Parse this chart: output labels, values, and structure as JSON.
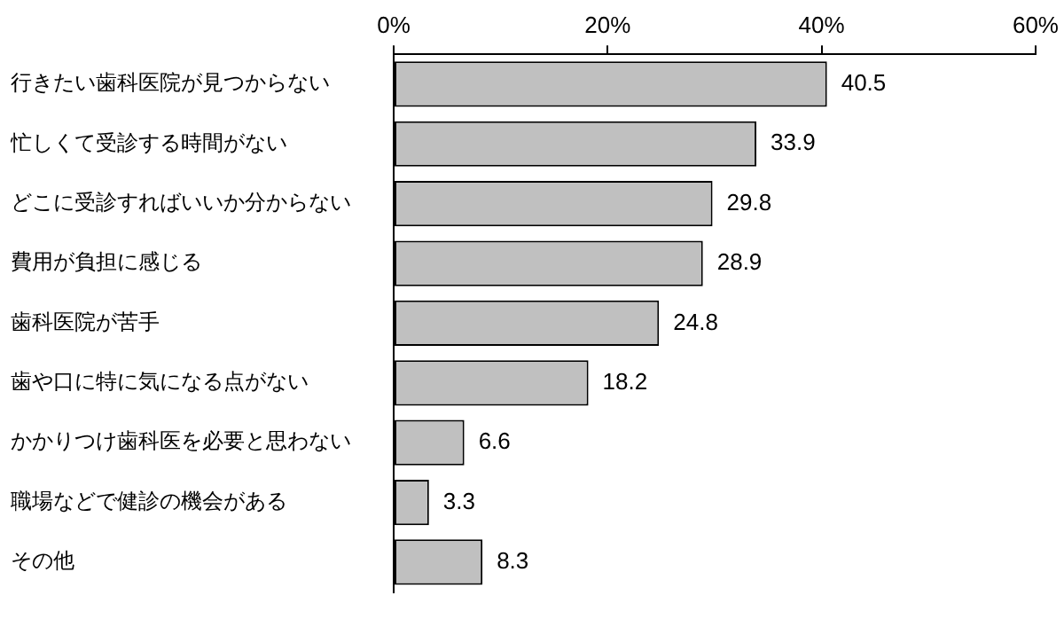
{
  "chart_data": {
    "type": "bar",
    "orientation": "horizontal",
    "categories": [
      "行きたい歯科医院が見つからない",
      "忙しくて受診する時間がない",
      "どこに受診すればいいか分からない",
      "費用が負担に感じる",
      "歯科医院が苦手",
      "歯や口に特に気になる点がない",
      "かかりつけ歯科医を必要と思わない",
      "職場などで健診の機会がある",
      "その他"
    ],
    "values": [
      40.5,
      33.9,
      29.8,
      28.9,
      24.8,
      18.2,
      6.6,
      3.3,
      8.3
    ],
    "color": "#c0c0c0",
    "xlim": [
      0,
      60
    ],
    "xticks": [
      {
        "value": 0,
        "label": "0%"
      },
      {
        "value": 20,
        "label": "20%"
      },
      {
        "value": 40,
        "label": "40%"
      },
      {
        "value": 60,
        "label": "60%"
      }
    ],
    "data_labels": true,
    "grid": false,
    "legend": false
  }
}
